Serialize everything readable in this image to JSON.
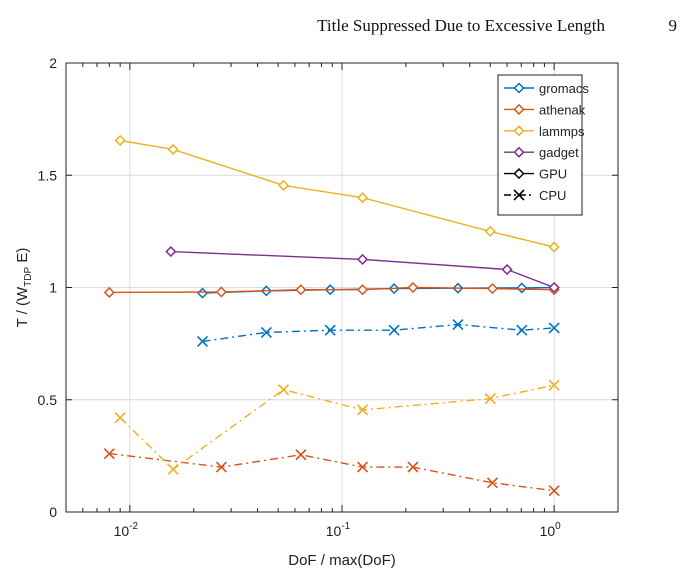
{
  "header": {
    "title": "Title Suppressed Due to Excessive Length",
    "page_number": "9"
  },
  "chart_data": {
    "type": "line",
    "xlabel": "DoF / max(DoF)",
    "ylabel_parts": {
      "pre": "T / (W",
      "sub": "TDP",
      "post": " E)"
    },
    "x_scale": "log",
    "xlim": [
      0.005,
      2
    ],
    "ylim": [
      0,
      2
    ],
    "y_ticks": [
      0,
      0.5,
      1,
      1.5,
      2
    ],
    "y_tick_labels": [
      "0",
      "0.5",
      "1",
      "1.5",
      "2"
    ],
    "x_ticks": [
      0.01,
      0.1,
      1
    ],
    "x_tick_labels": [
      {
        "base": "10",
        "exp": "-2"
      },
      {
        "base": "10",
        "exp": "-1"
      },
      {
        "base": "10",
        "exp": "0"
      }
    ],
    "grid": true,
    "legend_position": "top-right",
    "legend": [
      {
        "label": "gromacs",
        "color": "#0072BD",
        "marker": "diamond",
        "line": "solid"
      },
      {
        "label": "athenak",
        "color": "#D95319",
        "marker": "diamond",
        "line": "solid"
      },
      {
        "label": "lammps",
        "color": "#EDB120",
        "marker": "diamond",
        "line": "solid"
      },
      {
        "label": "gadget",
        "color": "#7E2F8E",
        "marker": "diamond",
        "line": "solid"
      },
      {
        "label": "GPU",
        "color": "#000000",
        "marker": "diamond",
        "line": "solid"
      },
      {
        "label": "CPU",
        "color": "#000000",
        "marker": "x",
        "line": "dashdot"
      }
    ],
    "series": [
      {
        "name": "gromacs GPU",
        "color": "#0072BD",
        "marker": "diamond",
        "dash": "",
        "x": [
          0.022,
          0.044,
          0.088,
          0.176,
          0.352,
          0.704,
          1.0
        ],
        "y": [
          0.975,
          0.985,
          0.99,
          0.995,
          0.997,
          0.998,
          1.0
        ]
      },
      {
        "name": "athenak GPU",
        "color": "#D95319",
        "marker": "diamond",
        "dash": "",
        "x": [
          0.008,
          0.027,
          0.064,
          0.125,
          0.216,
          0.512,
          1.0
        ],
        "y": [
          0.978,
          0.98,
          0.99,
          0.99,
          1.0,
          0.995,
          0.99
        ]
      },
      {
        "name": "lammps GPU",
        "color": "#EDB120",
        "marker": "diamond",
        "dash": "",
        "x": [
          0.009,
          0.016,
          0.053,
          0.125,
          0.5,
          1.0
        ],
        "y": [
          1.655,
          1.615,
          1.455,
          1.4,
          1.25,
          1.18
        ]
      },
      {
        "name": "gadget GPU",
        "color": "#7E2F8E",
        "marker": "diamond",
        "dash": "",
        "x": [
          0.0156,
          0.125,
          0.6,
          1.0
        ],
        "y": [
          1.16,
          1.125,
          1.08,
          1.0
        ]
      },
      {
        "name": "gromacs CPU",
        "color": "#0072BD",
        "marker": "x",
        "dash": "8,4,2,4",
        "x": [
          0.022,
          0.044,
          0.088,
          0.176,
          0.352,
          0.704,
          1.0
        ],
        "y": [
          0.76,
          0.8,
          0.81,
          0.81,
          0.835,
          0.81,
          0.82
        ]
      },
      {
        "name": "athenak CPU",
        "color": "#D95319",
        "marker": "x",
        "dash": "8,4,2,4",
        "x": [
          0.008,
          0.027,
          0.064,
          0.125,
          0.216,
          0.512,
          1.0
        ],
        "y": [
          0.26,
          0.2,
          0.255,
          0.2,
          0.2,
          0.13,
          0.095
        ]
      },
      {
        "name": "lammps CPU",
        "color": "#EDB120",
        "marker": "x",
        "dash": "8,4,2,4",
        "x": [
          0.009,
          0.016,
          0.053,
          0.125,
          0.5,
          1.0
        ],
        "y": [
          0.42,
          0.19,
          0.545,
          0.455,
          0.505,
          0.565
        ]
      }
    ]
  }
}
